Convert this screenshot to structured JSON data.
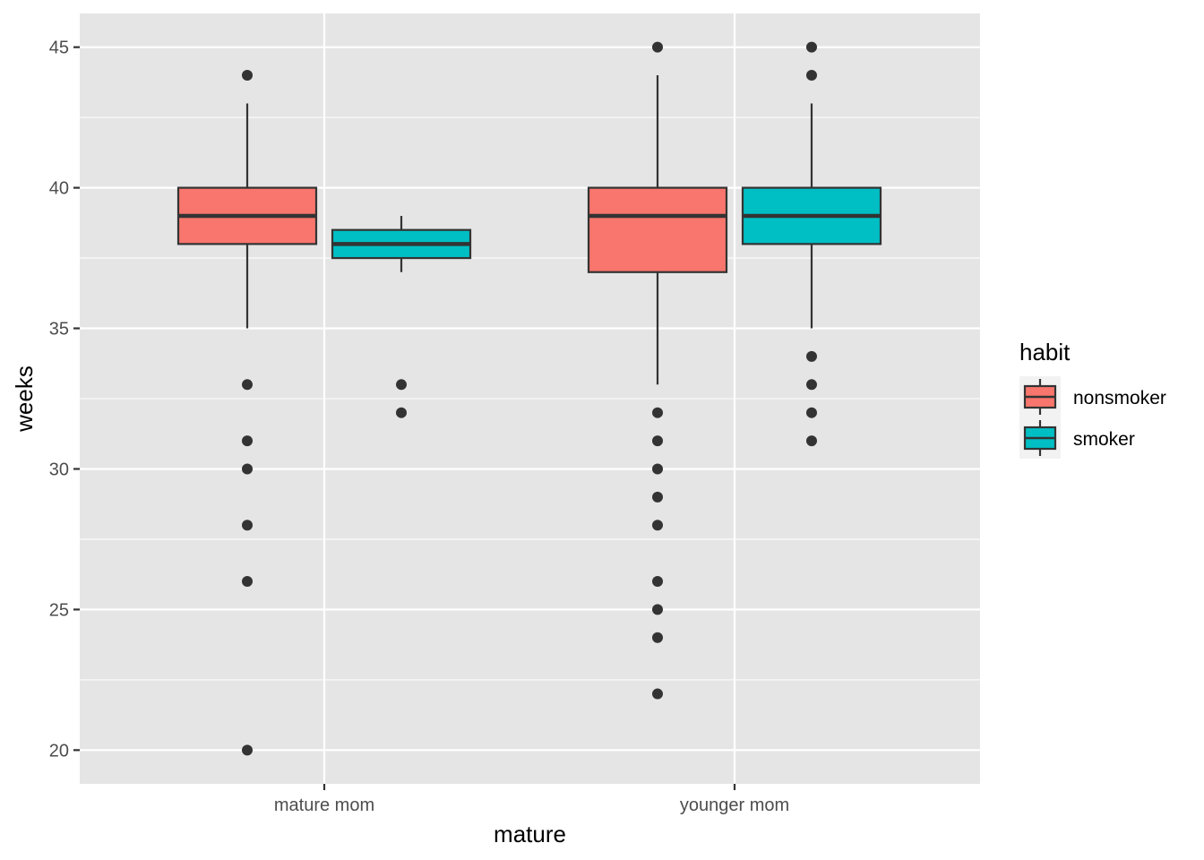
{
  "chart_data": {
    "type": "boxplot",
    "xlabel": "mature",
    "ylabel": "weeks",
    "categories": [
      "mature mom",
      "younger mom"
    ],
    "ylim": [
      18.8,
      46.2
    ],
    "yticks": [
      20,
      25,
      30,
      35,
      40,
      45
    ],
    "ytick_labels": [
      "20",
      "25",
      "30",
      "35",
      "40",
      "45"
    ],
    "grid": true,
    "legend": {
      "title": "habit",
      "position": "right",
      "entries": [
        {
          "label": "nonsmoker",
          "color": "#F8766D"
        },
        {
          "label": "smoker",
          "color": "#00BFC4"
        }
      ]
    },
    "series": [
      {
        "name": "nonsmoker",
        "color": "#F8766D",
        "boxes": [
          {
            "category": "mature mom",
            "whisker_low": 35,
            "q1": 38,
            "median": 39,
            "q3": 40,
            "whisker_high": 43,
            "outliers": [
              44,
              33,
              31,
              30,
              28,
              26,
              20
            ]
          },
          {
            "category": "younger mom",
            "whisker_low": 33,
            "q1": 37,
            "median": 39,
            "q3": 40,
            "whisker_high": 44,
            "outliers": [
              45,
              32,
              31,
              30,
              29,
              28,
              26,
              25,
              24,
              22
            ]
          }
        ]
      },
      {
        "name": "smoker",
        "color": "#00BFC4",
        "boxes": [
          {
            "category": "mature mom",
            "whisker_low": 37,
            "q1": 37.5,
            "median": 38,
            "q3": 38.5,
            "whisker_high": 39,
            "outliers": [
              33,
              32
            ]
          },
          {
            "category": "younger mom",
            "whisker_low": 35,
            "q1": 38,
            "median": 39,
            "q3": 40,
            "whisker_high": 43,
            "outliers": [
              45,
              44,
              34,
              33,
              32,
              31
            ]
          }
        ]
      }
    ]
  },
  "colors": {
    "panel_background": "#E5E5E5",
    "grid_line": "#FFFFFF",
    "box_outline": "#333333",
    "outlier_point": "#333333"
  }
}
